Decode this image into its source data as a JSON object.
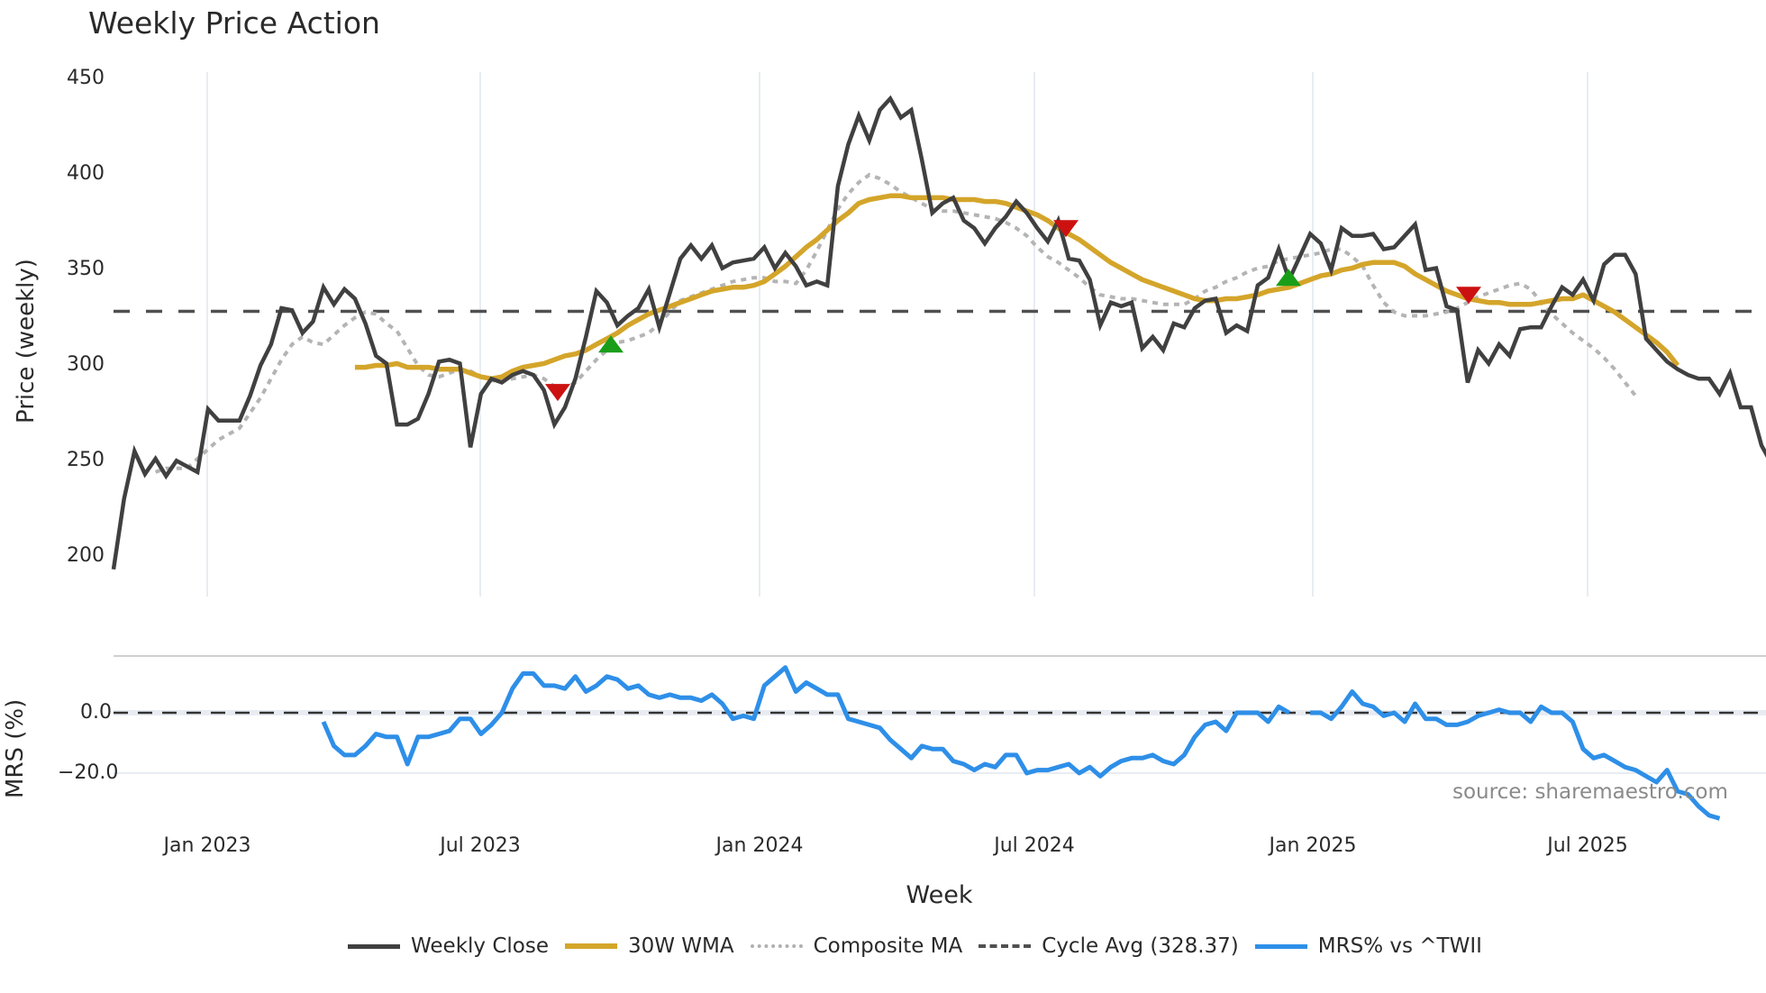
{
  "title": "Weekly Price Action",
  "price_axis": {
    "label": "Price (weekly)",
    "ticks": [
      "450",
      "400",
      "350",
      "300",
      "250",
      "200"
    ],
    "tick_values": [
      450,
      400,
      350,
      300,
      250,
      200
    ]
  },
  "mrs_axis": {
    "label": "MRS (%)",
    "ticks": [
      "0.0",
      "−20.0"
    ],
    "tick_values": [
      0,
      -20
    ]
  },
  "x_axis": {
    "label": "Week",
    "ticks": [
      "Jan 2023",
      "Jul 2023",
      "Jan 2024",
      "Jul 2024",
      "Jan 2025",
      "Jul 2025"
    ]
  },
  "source": "source: sharemaestro.com",
  "legend": [
    {
      "label": "Weekly Close",
      "color": "#404040",
      "style": "solid"
    },
    {
      "label": "30W WMA",
      "color": "#d4a52a",
      "style": "solid"
    },
    {
      "label": "Composite MA",
      "color": "#b0b0b0",
      "style": "dotted"
    },
    {
      "label": "Cycle Avg (328.37)",
      "color": "#505050",
      "style": "dashed"
    },
    {
      "label": "MRS% vs ^TWII",
      "color": "#2e8fe8",
      "style": "solid"
    }
  ],
  "colors": {
    "close": "#404040",
    "wma": "#d4a52a",
    "composite": "#b4b4b4",
    "cycle": "#505050",
    "mrs": "#2e8fe8",
    "buy": "#1a9e1a",
    "sell": "#cc1111",
    "grid": "#e8ecf2"
  },
  "chart_data": [
    {
      "type": "line",
      "title": "Weekly Price Action",
      "xlabel": "Week",
      "ylabel": "Price (weekly)",
      "ylim": [
        188,
        455
      ],
      "x_ticks": [
        "Jan 2023",
        "Jul 2023",
        "Jan 2024",
        "Jul 2024",
        "Jan 2025",
        "Jul 2025"
      ],
      "cycle_avg": 328.37,
      "series": [
        {
          "name": "Weekly Close",
          "start_index": 0,
          "values": [
            193,
            230,
            255,
            243,
            251,
            242,
            250,
            247,
            244,
            277,
            271,
            271,
            271,
            284,
            300,
            311,
            330,
            329,
            317,
            323,
            341,
            332,
            340,
            335,
            322,
            305,
            301,
            269,
            269,
            272,
            285,
            302,
            303,
            301,
            257,
            285,
            293,
            291,
            295,
            297,
            295,
            287,
            269,
            278,
            293,
            315,
            339,
            333,
            321,
            326,
            330,
            340,
            320,
            338,
            356,
            363,
            356,
            363,
            351,
            354,
            355,
            356,
            362,
            351,
            359,
            352,
            342,
            344,
            342,
            394,
            416,
            431,
            418,
            434,
            440,
            430,
            434,
            408,
            380,
            385,
            388,
            376,
            372,
            364,
            372,
            378,
            386,
            380,
            372,
            365,
            376,
            356,
            355,
            345,
            321,
            333,
            331,
            333,
            309,
            315,
            308,
            322,
            320,
            330,
            334,
            335,
            317,
            321,
            318,
            342,
            346,
            361,
            345,
            357,
            369,
            364,
            350,
            372,
            368,
            368,
            369,
            361,
            362,
            368,
            374,
            350,
            351,
            331,
            329,
            291,
            308,
            301,
            311,
            305,
            319,
            320,
            320,
            331,
            341,
            337,
            345,
            334,
            353,
            358,
            358,
            348,
            314,
            308,
            302,
            298,
            295,
            293,
            293,
            285,
            296,
            278,
            278,
            258,
            248,
            240
          ]
        },
        {
          "name": "30W WMA",
          "start_index": 23,
          "values": [
            299,
            299,
            300,
            300,
            301,
            299,
            299,
            299,
            298,
            298,
            298,
            296,
            294,
            293,
            294,
            297,
            299,
            300,
            301,
            303,
            305,
            306,
            308,
            311,
            314,
            317,
            321,
            324,
            327,
            329,
            331,
            333,
            335,
            337,
            339,
            340,
            341,
            341,
            342,
            344,
            348,
            352,
            357,
            362,
            366,
            371,
            376,
            380,
            385,
            387,
            388,
            389,
            389,
            388,
            388,
            388,
            388,
            387,
            387,
            387,
            386,
            386,
            385,
            383,
            381,
            379,
            376,
            372,
            369,
            366,
            362,
            358,
            354,
            351,
            348,
            345,
            343,
            341,
            339,
            337,
            335,
            334,
            334,
            335,
            335,
            336,
            337,
            339,
            340,
            341,
            343,
            345,
            347,
            348,
            350,
            351,
            353,
            354,
            354,
            354,
            352,
            348,
            345,
            342,
            339,
            337,
            335,
            334,
            333,
            333,
            332,
            332,
            332,
            333,
            334,
            335,
            335,
            337,
            334,
            331,
            328,
            324,
            320,
            316,
            312,
            307,
            300
          ]
        },
        {
          "name": "Composite MA",
          "start_index": 4,
          "values": [
            244,
            246,
            246,
            246,
            251,
            256,
            261,
            264,
            267,
            275,
            283,
            293,
            303,
            311,
            315,
            312,
            311,
            316,
            321,
            325,
            328,
            327,
            322,
            318,
            309,
            300,
            295,
            294,
            296,
            298,
            297,
            294,
            292,
            292,
            293,
            294,
            295,
            293,
            289,
            288,
            291,
            297,
            303,
            308,
            312,
            313,
            315,
            317,
            322,
            328,
            334,
            336,
            338,
            340,
            342,
            344,
            345,
            346,
            346,
            344,
            344,
            343,
            350,
            360,
            371,
            382,
            390,
            396,
            400,
            398,
            395,
            391,
            388,
            385,
            382,
            381,
            381,
            380,
            379,
            378,
            377,
            375,
            372,
            368,
            362,
            357,
            354,
            350,
            346,
            341,
            337,
            336,
            335,
            335,
            334,
            333,
            332,
            332,
            332,
            335,
            339,
            341,
            344,
            346,
            349,
            351,
            352,
            355,
            356,
            357,
            358,
            359,
            361,
            361,
            357,
            352,
            342,
            333,
            328,
            326,
            326,
            326,
            327,
            328,
            330,
            333,
            336,
            338,
            340,
            342,
            343,
            340,
            333,
            327,
            322,
            317,
            313,
            309,
            304,
            298,
            291,
            284
          ]
        }
      ],
      "markers": [
        {
          "type": "sell",
          "shape": "triangle-down",
          "x_label": "Aug 2023",
          "price": 286
        },
        {
          "type": "buy",
          "shape": "triangle-up",
          "x_label": "Sep 2023",
          "price": 311
        },
        {
          "type": "sell",
          "shape": "triangle-down",
          "x_label": "Jul 2024",
          "price": 372
        },
        {
          "type": "buy",
          "shape": "triangle-up",
          "x_label": "Dec 2024",
          "price": 346
        },
        {
          "type": "sell",
          "shape": "triangle-down",
          "x_label": "Apr 2025",
          "price": 337
        }
      ]
    },
    {
      "type": "line",
      "title": "MRS% vs ^TWII",
      "ylabel": "MRS (%)",
      "ylim": [
        -35,
        16
      ],
      "zero_line": 0,
      "series": [
        {
          "name": "MRS% vs ^TWII",
          "start_index": 20,
          "values": [
            -3,
            -11,
            -14,
            -14,
            -11,
            -7,
            -8,
            -8,
            -17,
            -8,
            -8,
            -7,
            -6,
            -2,
            -2,
            -7,
            -4,
            0,
            8,
            13,
            13,
            9,
            9,
            8,
            12,
            7,
            9,
            12,
            11,
            8,
            9,
            6,
            5,
            6,
            5,
            5,
            4,
            6,
            3,
            -2,
            -1,
            -2,
            9,
            12,
            15,
            7,
            10,
            8,
            6,
            6,
            -2,
            -3,
            -4,
            -5,
            -9,
            -12,
            -15,
            -11,
            -12,
            -12,
            -16,
            -17,
            -19,
            -17,
            -18,
            -14,
            -14,
            -20,
            -19,
            -19,
            -18,
            -17,
            -20,
            -18,
            -21,
            -18,
            -16,
            -15,
            -15,
            -14,
            -16,
            -17,
            -14,
            -8,
            -4,
            -3,
            -6,
            0,
            0,
            0,
            -3,
            2,
            0,
            null,
            0,
            0,
            -2,
            2,
            7,
            3,
            2,
            -1,
            0,
            -3,
            3,
            -2,
            -2,
            -4,
            -4,
            -3,
            -1,
            0,
            1,
            0,
            0,
            -3,
            2,
            0,
            0,
            -3,
            -12,
            -15,
            -14,
            -16,
            -18,
            -19,
            -21,
            -23,
            -19,
            -26,
            -27,
            -31,
            -34,
            -35
          ]
        }
      ]
    }
  ]
}
